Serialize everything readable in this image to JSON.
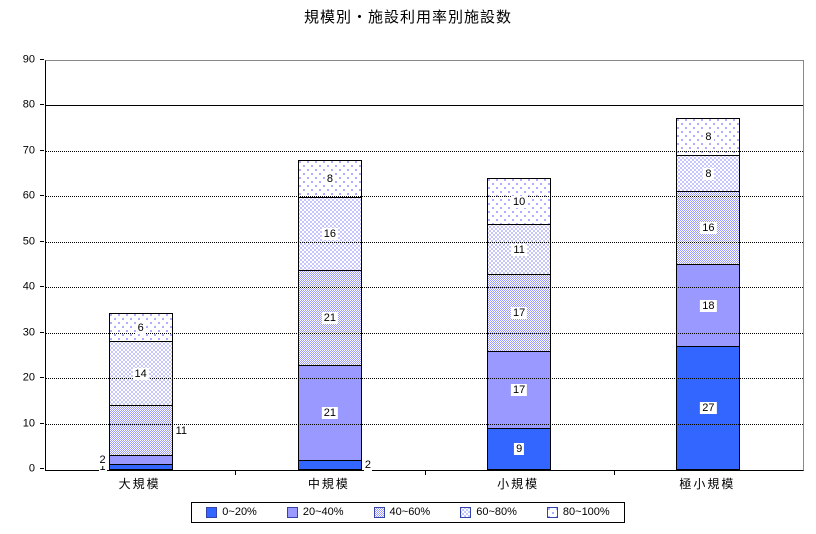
{
  "title": "規模別・施設利用率別施設数",
  "colors": {
    "series_0_20": "#3366ff",
    "series_20_40": "#9999ff",
    "pattern_dot": "#9999ff",
    "axis_line": "#000000",
    "frame_gray": "#888888"
  },
  "chart_data": {
    "type": "bar",
    "stacked": true,
    "title": "規模別・施設利用率別施設数",
    "categories": [
      "大規模",
      "中規模",
      "小規模",
      "極小規模"
    ],
    "series": [
      {
        "name": "0~20%",
        "style": "solid-dark",
        "values": [
          1,
          2,
          9,
          27
        ]
      },
      {
        "name": "20~40%",
        "style": "solid-light",
        "values": [
          2,
          21,
          17,
          18
        ]
      },
      {
        "name": "40~60%",
        "style": "checker",
        "values": [
          11,
          21,
          17,
          16
        ]
      },
      {
        "name": "60~80%",
        "style": "dots-dense",
        "values": [
          14,
          16,
          11,
          8
        ]
      },
      {
        "name": "80~100%",
        "style": "dots-sparse",
        "values": [
          6,
          8,
          10,
          8
        ]
      }
    ],
    "ylim": [
      0,
      90
    ],
    "ytick_step": 10,
    "solid_gridline_at": 80,
    "grid": "dotted-horizontal",
    "legend_position": "bottom",
    "outside_labels": [
      {
        "category": 0,
        "series": 0,
        "side": "left"
      },
      {
        "category": 0,
        "series": 1,
        "side": "left"
      },
      {
        "category": 0,
        "series": 2,
        "side": "right"
      },
      {
        "category": 1,
        "series": 0,
        "side": "right"
      }
    ]
  }
}
